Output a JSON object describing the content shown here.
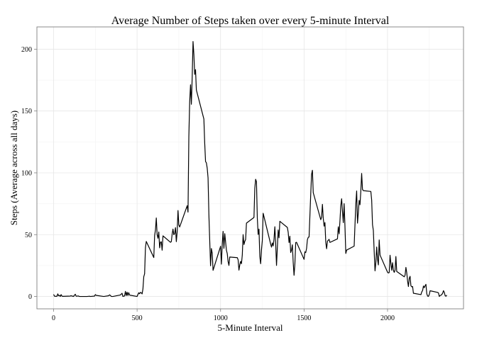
{
  "chart_data": {
    "type": "line",
    "title": "Average Number of Steps taken over every 5-minute Interval",
    "xlabel": "5-Minute Interval",
    "ylabel": "Steps (Average across all days)",
    "xlim": [
      -100,
      2455
    ],
    "ylim": [
      -10,
      218
    ],
    "x_ticks": [
      0,
      500,
      1000,
      1500,
      2000
    ],
    "y_ticks": [
      0,
      50,
      100,
      150,
      200
    ],
    "x_tick_labels": [
      "0",
      "500",
      "1000",
      "1500",
      "2000"
    ],
    "y_tick_labels": [
      "0",
      "50",
      "100",
      "150",
      "200"
    ],
    "grid": true,
    "series": [
      {
        "color": "#000000",
        "points": [
          [
            0,
            1.7
          ],
          [
            5,
            0.3
          ],
          [
            10,
            0.1
          ],
          [
            15,
            0.2
          ],
          [
            20,
            0.1
          ],
          [
            25,
            2.1
          ],
          [
            30,
            0.5
          ],
          [
            35,
            0.9
          ],
          [
            40,
            0.0
          ],
          [
            45,
            1.5
          ],
          [
            50,
            0.3
          ],
          [
            55,
            0.1
          ],
          [
            100,
            0.3
          ],
          [
            105,
            0.7
          ],
          [
            110,
            0.2
          ],
          [
            115,
            0.3
          ],
          [
            120,
            0.0
          ],
          [
            125,
            1.1
          ],
          [
            130,
            1.8
          ],
          [
            135,
            0.2
          ],
          [
            140,
            0.2
          ],
          [
            145,
            0.4
          ],
          [
            150,
            0.3
          ],
          [
            155,
            0.0
          ],
          [
            200,
            0.0
          ],
          [
            215,
            0.2
          ],
          [
            220,
            0.0
          ],
          [
            245,
            0.3
          ],
          [
            250,
            1.5
          ],
          [
            255,
            0.9
          ],
          [
            300,
            0.0
          ],
          [
            330,
            0.6
          ],
          [
            335,
            1.3
          ],
          [
            340,
            0.8
          ],
          [
            345,
            0.1
          ],
          [
            350,
            0.0
          ],
          [
            355,
            0.0
          ],
          [
            400,
            1.2
          ],
          [
            410,
            2.6
          ],
          [
            415,
            0.0
          ],
          [
            420,
            0.3
          ],
          [
            425,
            0.4
          ],
          [
            430,
            4.1
          ],
          [
            435,
            0.7
          ],
          [
            440,
            3.5
          ],
          [
            445,
            0.8
          ],
          [
            450,
            3.1
          ],
          [
            455,
            1.1
          ],
          [
            500,
            0.0
          ],
          [
            505,
            1.6
          ],
          [
            510,
            3.0
          ],
          [
            515,
            2.2
          ],
          [
            520,
            3.3
          ],
          [
            525,
            3.0
          ],
          [
            530,
            2.1
          ],
          [
            535,
            6.1
          ],
          [
            540,
            16.0
          ],
          [
            545,
            18.3
          ],
          [
            550,
            39.5
          ],
          [
            555,
            44.5
          ],
          [
            600,
            31.5
          ],
          [
            605,
            49.3
          ],
          [
            610,
            53.8
          ],
          [
            615,
            63.5
          ],
          [
            620,
            50.0
          ],
          [
            625,
            47.1
          ],
          [
            630,
            52.2
          ],
          [
            635,
            39.3
          ],
          [
            640,
            44.0
          ],
          [
            645,
            44.2
          ],
          [
            650,
            37.4
          ],
          [
            655,
            49.0
          ],
          [
            700,
            43.8
          ],
          [
            705,
            44.4
          ],
          [
            710,
            50.5
          ],
          [
            715,
            54.5
          ],
          [
            720,
            49.9
          ],
          [
            725,
            51.0
          ],
          [
            730,
            55.7
          ],
          [
            735,
            44.3
          ],
          [
            740,
            52.3
          ],
          [
            745,
            69.5
          ],
          [
            750,
            57.8
          ],
          [
            755,
            56.2
          ],
          [
            800,
            73.4
          ],
          [
            805,
            68.2
          ],
          [
            810,
            129.4
          ],
          [
            815,
            157.5
          ],
          [
            820,
            171.2
          ],
          [
            825,
            155.4
          ],
          [
            830,
            177.3
          ],
          [
            835,
            206.2
          ],
          [
            840,
            195.9
          ],
          [
            845,
            179.6
          ],
          [
            850,
            183.4
          ],
          [
            855,
            167.0
          ],
          [
            900,
            143.5
          ],
          [
            905,
            124.0
          ],
          [
            910,
            109.1
          ],
          [
            915,
            108.1
          ],
          [
            920,
            103.7
          ],
          [
            925,
            95.9
          ],
          [
            930,
            66.2
          ],
          [
            935,
            45.2
          ],
          [
            940,
            24.8
          ],
          [
            945,
            38.8
          ],
          [
            950,
            35.0
          ],
          [
            955,
            21.1
          ],
          [
            1000,
            40.6
          ],
          [
            1005,
            26.1
          ],
          [
            1010,
            42.4
          ],
          [
            1015,
            52.7
          ],
          [
            1020,
            38.9
          ],
          [
            1025,
            50.8
          ],
          [
            1030,
            44.3
          ],
          [
            1035,
            37.4
          ],
          [
            1040,
            34.7
          ],
          [
            1045,
            28.3
          ],
          [
            1050,
            25.1
          ],
          [
            1055,
            31.9
          ],
          [
            1100,
            31.4
          ],
          [
            1105,
            29.7
          ],
          [
            1110,
            21.3
          ],
          [
            1115,
            25.5
          ],
          [
            1120,
            28.4
          ],
          [
            1125,
            26.5
          ],
          [
            1130,
            33.4
          ],
          [
            1135,
            50.0
          ],
          [
            1140,
            42.0
          ],
          [
            1145,
            44.6
          ],
          [
            1150,
            46.0
          ],
          [
            1155,
            59.3
          ],
          [
            1200,
            63.9
          ],
          [
            1205,
            87.6
          ],
          [
            1210,
            94.8
          ],
          [
            1215,
            92.8
          ],
          [
            1220,
            63.4
          ],
          [
            1225,
            50.2
          ],
          [
            1230,
            54.5
          ],
          [
            1235,
            32.4
          ],
          [
            1240,
            26.5
          ],
          [
            1245,
            37.7
          ],
          [
            1250,
            45.1
          ],
          [
            1255,
            67.3
          ],
          [
            1300,
            42.3
          ],
          [
            1305,
            39.9
          ],
          [
            1310,
            43.3
          ],
          [
            1315,
            40.9
          ],
          [
            1320,
            46.2
          ],
          [
            1325,
            56.4
          ],
          [
            1330,
            42.8
          ],
          [
            1335,
            25.1
          ],
          [
            1340,
            39.5
          ],
          [
            1345,
            53.8
          ],
          [
            1350,
            47.4
          ],
          [
            1355,
            60.8
          ],
          [
            1400,
            55.8
          ],
          [
            1405,
            51.9
          ],
          [
            1410,
            43.6
          ],
          [
            1415,
            48.7
          ],
          [
            1420,
            35.5
          ],
          [
            1425,
            37.5
          ],
          [
            1430,
            41.8
          ],
          [
            1435,
            27.5
          ],
          [
            1440,
            17.1
          ],
          [
            1445,
            26.1
          ],
          [
            1450,
            43.6
          ],
          [
            1455,
            43.8
          ],
          [
            1500,
            30.0
          ],
          [
            1505,
            36.1
          ],
          [
            1510,
            35.5
          ],
          [
            1515,
            38.8
          ],
          [
            1520,
            45.9
          ],
          [
            1525,
            47.8
          ],
          [
            1530,
            48.1
          ],
          [
            1535,
            65.3
          ],
          [
            1540,
            82.9
          ],
          [
            1545,
            98.7
          ],
          [
            1550,
            102.1
          ],
          [
            1555,
            83.96
          ],
          [
            1600,
            62.1
          ],
          [
            1605,
            64.1
          ],
          [
            1610,
            74.5
          ],
          [
            1615,
            63.2
          ],
          [
            1620,
            56.9
          ],
          [
            1625,
            59.8
          ],
          [
            1630,
            43.9
          ],
          [
            1635,
            38.6
          ],
          [
            1640,
            44.7
          ],
          [
            1645,
            45.5
          ],
          [
            1650,
            46.2
          ],
          [
            1655,
            43.7
          ],
          [
            1700,
            46.6
          ],
          [
            1705,
            56.3
          ],
          [
            1710,
            50.7
          ],
          [
            1715,
            61.2
          ],
          [
            1720,
            73.4
          ],
          [
            1725,
            79.0
          ],
          [
            1730,
            68.9
          ],
          [
            1735,
            59.7
          ],
          [
            1740,
            75.1
          ],
          [
            1745,
            56.5
          ],
          [
            1750,
            34.8
          ],
          [
            1755,
            37.5
          ],
          [
            1800,
            40.7
          ],
          [
            1805,
            58.0
          ],
          [
            1810,
            74.7
          ],
          [
            1815,
            85.3
          ],
          [
            1820,
            59.3
          ],
          [
            1825,
            67.8
          ],
          [
            1830,
            77.7
          ],
          [
            1835,
            74.2
          ],
          [
            1840,
            85.3
          ],
          [
            1845,
            99.5
          ],
          [
            1850,
            86.6
          ],
          [
            1855,
            85.6
          ],
          [
            1900,
            84.9
          ],
          [
            1905,
            77.8
          ],
          [
            1910,
            58.0
          ],
          [
            1915,
            53.4
          ],
          [
            1920,
            36.3
          ],
          [
            1925,
            20.7
          ],
          [
            1930,
            27.4
          ],
          [
            1935,
            40.0
          ],
          [
            1940,
            30.2
          ],
          [
            1945,
            25.5
          ],
          [
            1950,
            45.7
          ],
          [
            1955,
            33.5
          ],
          [
            2000,
            19.6
          ],
          [
            2005,
            19.0
          ],
          [
            2010,
            19.3
          ],
          [
            2015,
            33.3
          ],
          [
            2020,
            26.8
          ],
          [
            2025,
            21.2
          ],
          [
            2030,
            27.3
          ],
          [
            2035,
            21.3
          ],
          [
            2040,
            19.5
          ],
          [
            2045,
            21.3
          ],
          [
            2050,
            32.3
          ],
          [
            2055,
            20.2
          ],
          [
            2100,
            15.9
          ],
          [
            2105,
            17.2
          ],
          [
            2110,
            23.5
          ],
          [
            2115,
            19.2
          ],
          [
            2120,
            12.5
          ],
          [
            2125,
            8.0
          ],
          [
            2130,
            14.7
          ],
          [
            2135,
            16.3
          ],
          [
            2140,
            8.7
          ],
          [
            2145,
            7.8
          ],
          [
            2150,
            8.1
          ],
          [
            2155,
            2.6
          ],
          [
            2200,
            1.5
          ],
          [
            2205,
            3.7
          ],
          [
            2210,
            4.8
          ],
          [
            2215,
            8.5
          ],
          [
            2220,
            7.1
          ],
          [
            2225,
            8.7
          ],
          [
            2230,
            9.8
          ],
          [
            2235,
            2.2
          ],
          [
            2240,
            0.3
          ],
          [
            2245,
            0.1
          ],
          [
            2250,
            1.6
          ],
          [
            2255,
            4.6
          ],
          [
            2300,
            3.3
          ],
          [
            2305,
            2.8
          ],
          [
            2310,
            0.0
          ],
          [
            2315,
            0.8
          ],
          [
            2320,
            1.0
          ],
          [
            2325,
            1.6
          ],
          [
            2330,
            2.6
          ],
          [
            2335,
            4.7
          ],
          [
            2340,
            3.3
          ],
          [
            2345,
            0.6
          ],
          [
            2350,
            0.2
          ],
          [
            2355,
            1.1
          ]
        ]
      }
    ]
  }
}
